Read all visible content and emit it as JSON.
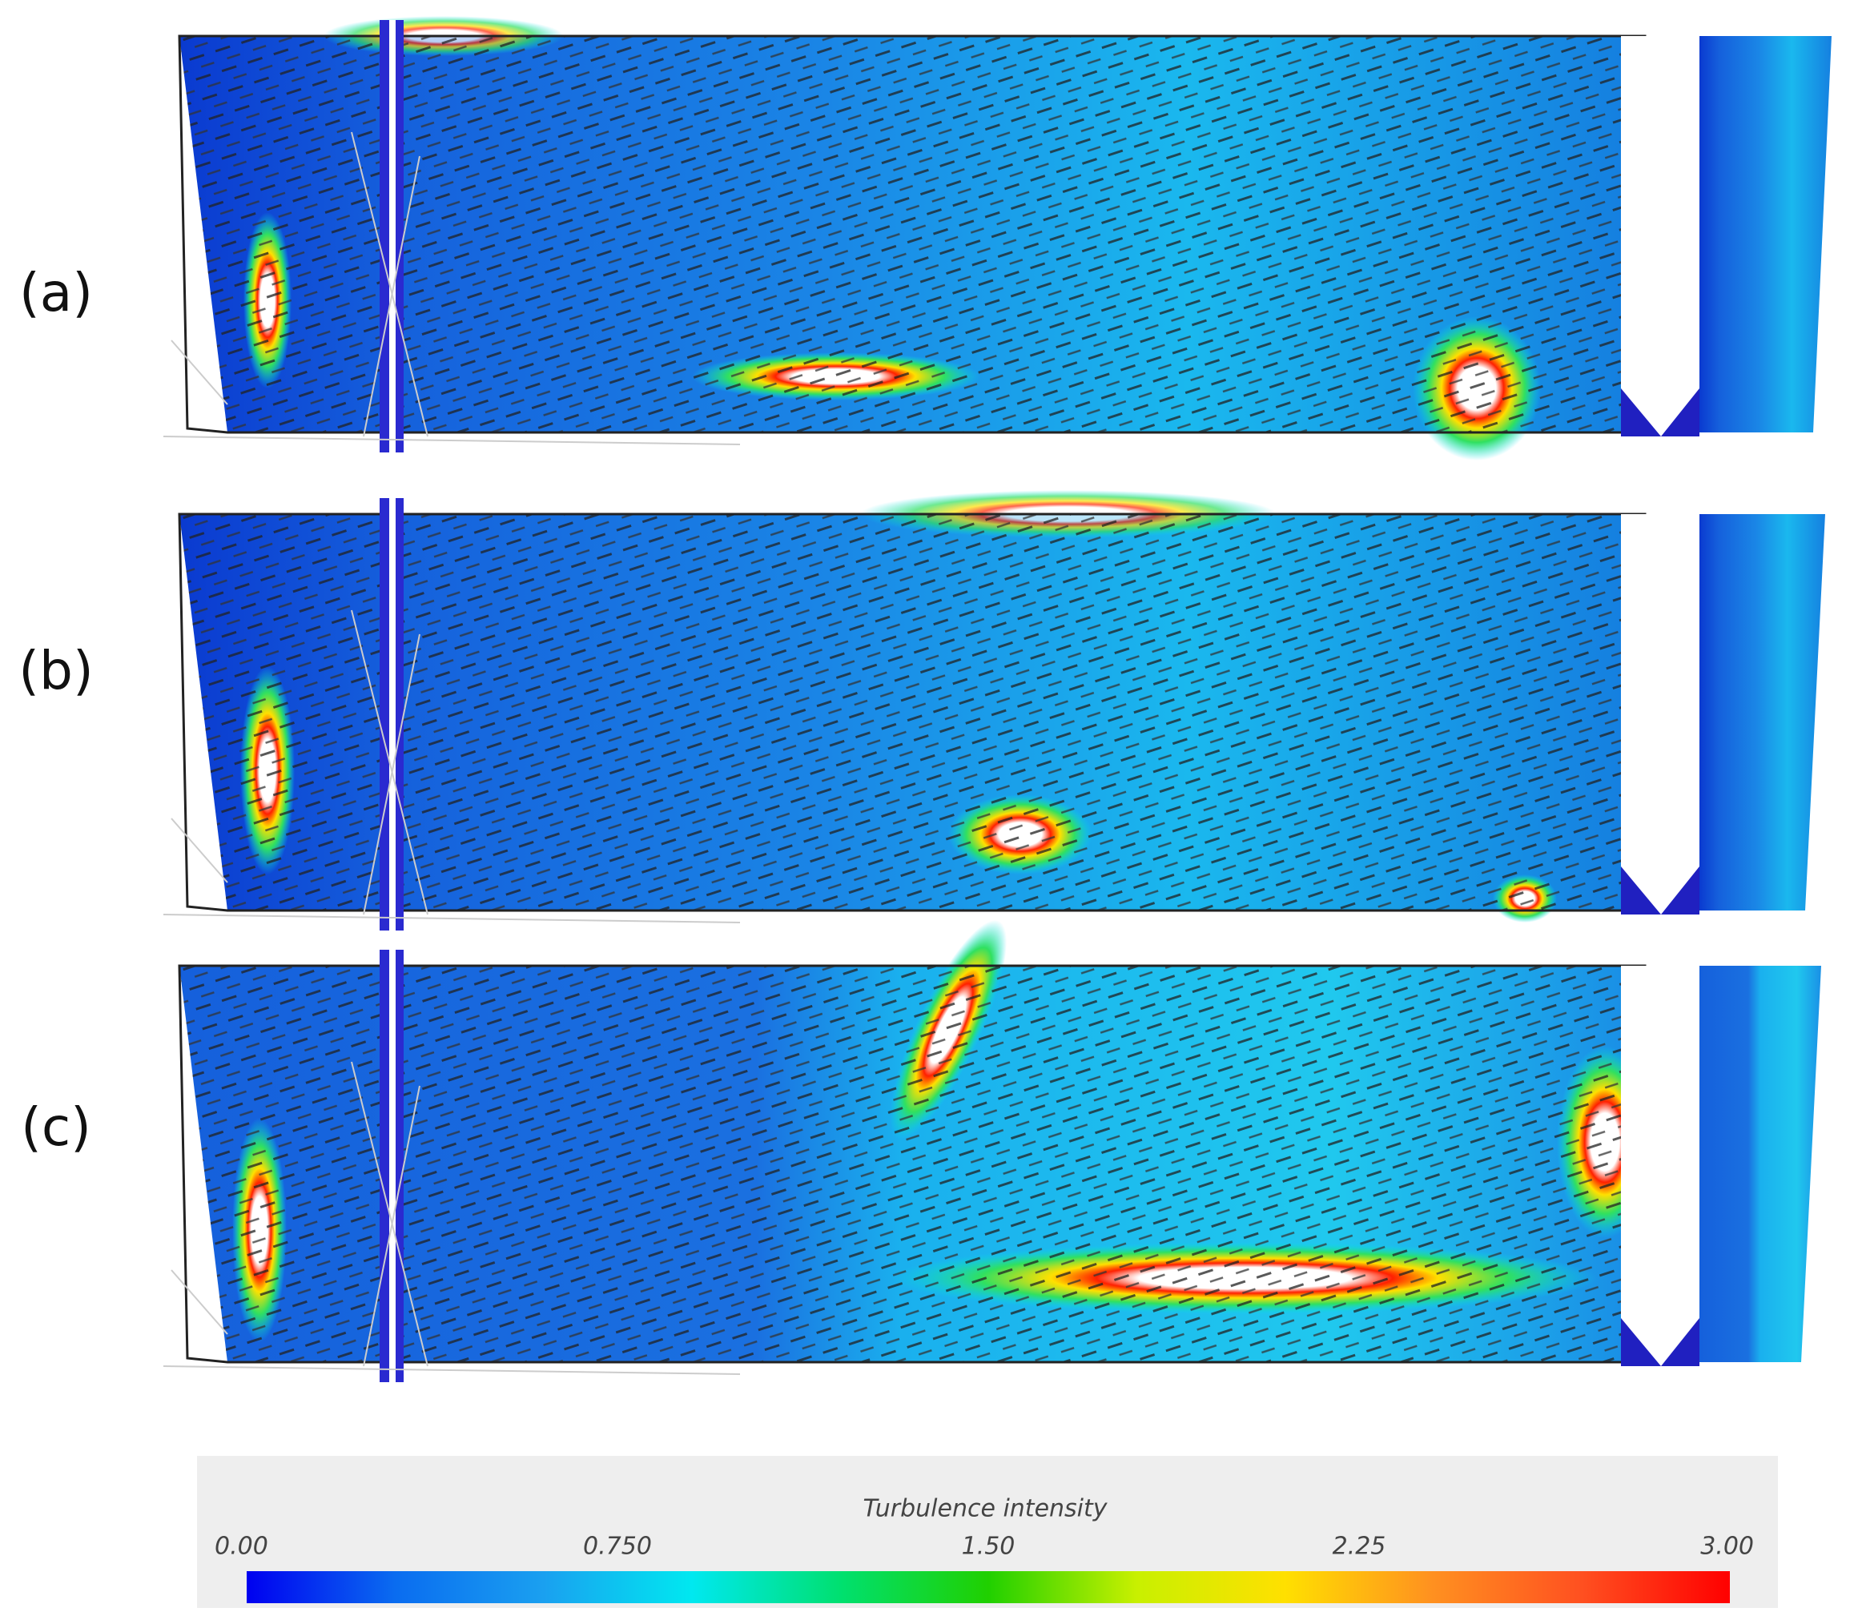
{
  "panels": [
    {
      "label": "(a)"
    },
    {
      "label": "(b)"
    },
    {
      "label": "(c)"
    }
  ],
  "colorbar": {
    "title": "Turbulence intensity",
    "range": [
      0,
      3
    ],
    "ticks": [
      {
        "value": 0,
        "label": "0.00"
      },
      {
        "value": 0.75,
        "label": "0.750"
      },
      {
        "value": 1.5,
        "label": "1.50"
      },
      {
        "value": 2.25,
        "label": "2.25"
      },
      {
        "value": 3,
        "label": "3.00"
      }
    ],
    "colors": [
      "#0000f0",
      "#0a6cf0",
      "#1aa0f0",
      "#00e8f0",
      "#00e070",
      "#20d000",
      "#c8f000",
      "#ffe000",
      "#ff9020",
      "#ff5020",
      "#ff0000"
    ]
  }
}
